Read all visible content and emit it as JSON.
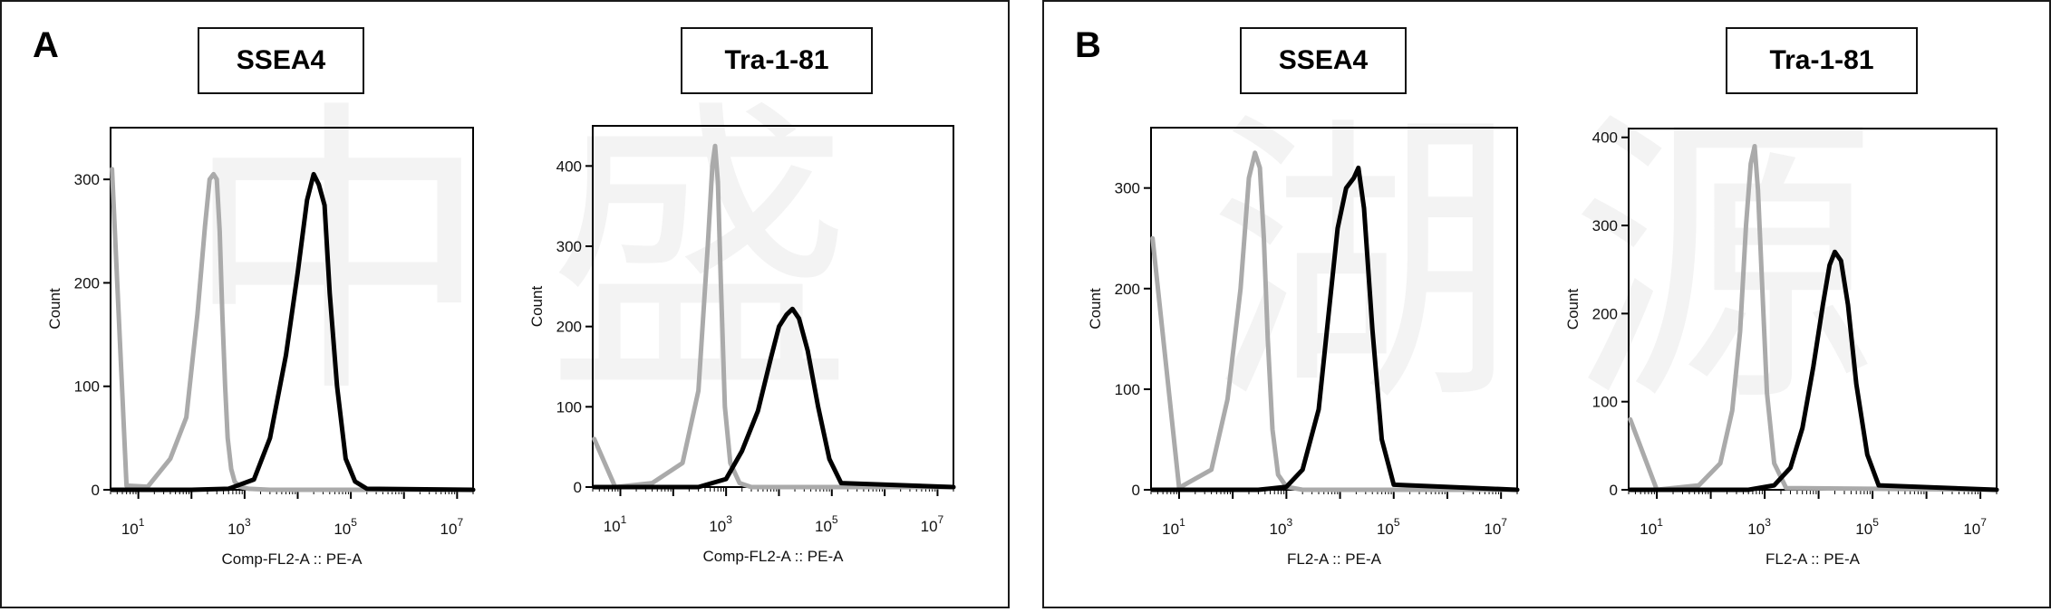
{
  "panels": [
    {
      "letter": "A",
      "plots": [
        {
          "title": "SSEA4",
          "chart_data": {
            "type": "line",
            "xlabel": "Comp-FL2-A :: PE-A",
            "ylabel": "Count",
            "xscale": "log",
            "xlim": [
              3,
              20000000
            ],
            "ylim": [
              0,
              350
            ],
            "yticks": [
              0,
              100,
              200,
              300
            ],
            "xticks": [
              "10^1",
              "10^3",
              "10^5",
              "10^7"
            ],
            "series": [
              {
                "color": "#aaaaaa",
                "x": [
                  3.2,
                  6,
                  15,
                  40,
                  80,
                  130,
                  180,
                  220,
                  260,
                  300,
                  340,
                  380,
                  430,
                  480,
                  560,
                  650,
                  800,
                  1200,
                  3000,
                  20000000
                ],
                "y": [
                  310,
                  4,
                  3,
                  30,
                  70,
                  170,
                  255,
                  300,
                  305,
                  300,
                  250,
                  170,
                  100,
                  50,
                  20,
                  8,
                  3,
                  1,
                  0,
                  0
                ]
              },
              {
                "color": "#000000",
                "x": [
                  3.2,
                  100,
                  500,
                  1500,
                  3000,
                  6000,
                  10000,
                  15000,
                  20000,
                  25000,
                  32000,
                  40000,
                  55000,
                  80000,
                  120000,
                  200000,
                  20000000
                ],
                "y": [
                  0,
                  0,
                  1,
                  10,
                  50,
                  130,
                  210,
                  280,
                  305,
                  295,
                  275,
                  190,
                  100,
                  30,
                  8,
                  1,
                  0
                ]
              }
            ]
          }
        },
        {
          "title": "Tra-1-81",
          "chart_data": {
            "type": "line",
            "xlabel": "Comp-FL2-A :: PE-A",
            "ylabel": "Count",
            "xscale": "log",
            "xlim": [
              3,
              20000000
            ],
            "ylim": [
              0,
              450
            ],
            "yticks": [
              0,
              100,
              200,
              300,
              400
            ],
            "xticks": [
              "10^1",
              "10^3",
              "10^5",
              "10^7"
            ],
            "series": [
              {
                "color": "#aaaaaa",
                "x": [
                  3.2,
                  8,
                  40,
                  150,
                  300,
                  450,
                  550,
                  620,
                  700,
                  800,
                  950,
                  1200,
                  1800,
                  3000,
                  20000000
                ],
                "y": [
                  60,
                  0,
                  5,
                  30,
                  120,
                  300,
                  400,
                  425,
                  380,
                  250,
                  100,
                  30,
                  5,
                  0,
                  0
                ]
              },
              {
                "color": "#000000",
                "x": [
                  3.2,
                  300,
                  1000,
                  2000,
                  4000,
                  7000,
                  10000,
                  14000,
                  18000,
                  24000,
                  35000,
                  55000,
                  90000,
                  150000,
                  20000000
                ],
                "y": [
                  0,
                  0,
                  10,
                  45,
                  95,
                  160,
                  200,
                  215,
                  222,
                  210,
                  170,
                  100,
                  35,
                  5,
                  0
                ]
              }
            ]
          }
        }
      ]
    },
    {
      "letter": "B",
      "plots": [
        {
          "title": "SSEA4",
          "chart_data": {
            "type": "line",
            "xlabel": "FL2-A :: PE-A",
            "ylabel": "Count",
            "xscale": "log",
            "xlim": [
              3,
              20000000
            ],
            "ylim": [
              0,
              360
            ],
            "yticks": [
              0,
              100,
              200,
              300
            ],
            "xticks": [
              "10^1",
              "10^3",
              "10^5",
              "10^7"
            ],
            "series": [
              {
                "color": "#aaaaaa",
                "x": [
                  3.2,
                  10,
                  40,
                  80,
                  140,
                  200,
                  260,
                  320,
                  380,
                  450,
                  550,
                  700,
                  1000,
                  2000,
                  20000000
                ],
                "y": [
                  250,
                  2,
                  20,
                  90,
                  200,
                  310,
                  335,
                  320,
                  250,
                  150,
                  60,
                  15,
                  3,
                  0,
                  0
                ]
              },
              {
                "color": "#000000",
                "x": [
                  3.2,
                  300,
                  1000,
                  2000,
                  4000,
                  6000,
                  9000,
                  13000,
                  18000,
                  22000,
                  28000,
                  40000,
                  60000,
                  100000,
                  20000000
                ],
                "y": [
                  0,
                  0,
                  3,
                  20,
                  80,
                  170,
                  260,
                  300,
                  310,
                  320,
                  280,
                  160,
                  50,
                  5,
                  0
                ]
              }
            ]
          }
        },
        {
          "title": "Tra-1-81",
          "chart_data": {
            "type": "line",
            "xlabel": "FL2-A :: PE-A",
            "ylabel": "Count",
            "xscale": "log",
            "xlim": [
              3,
              20000000
            ],
            "ylim": [
              0,
              410
            ],
            "yticks": [
              0,
              100,
              200,
              300,
              400
            ],
            "xticks": [
              "10^1",
              "10^3",
              "10^5",
              "10^7"
            ],
            "series": [
              {
                "color": "#aaaaaa",
                "x": [
                  3.2,
                  10,
                  60,
                  150,
                  250,
                  350,
                  450,
                  550,
                  650,
                  750,
                  900,
                  1100,
                  1500,
                  2500,
                  20000000
                ],
                "y": [
                  80,
                  0,
                  5,
                  30,
                  90,
                  180,
                  300,
                  370,
                  390,
                  340,
                  230,
                  110,
                  30,
                  2,
                  0
                ]
              },
              {
                "color": "#000000",
                "x": [
                  3.2,
                  500,
                  1500,
                  3000,
                  5000,
                  8000,
                  12000,
                  16000,
                  20000,
                  26000,
                  35000,
                  50000,
                  80000,
                  130000,
                  20000000
                ],
                "y": [
                  0,
                  0,
                  5,
                  25,
                  70,
                  140,
                  210,
                  255,
                  270,
                  260,
                  210,
                  120,
                  40,
                  5,
                  0
                ]
              }
            ]
          }
        }
      ]
    }
  ]
}
